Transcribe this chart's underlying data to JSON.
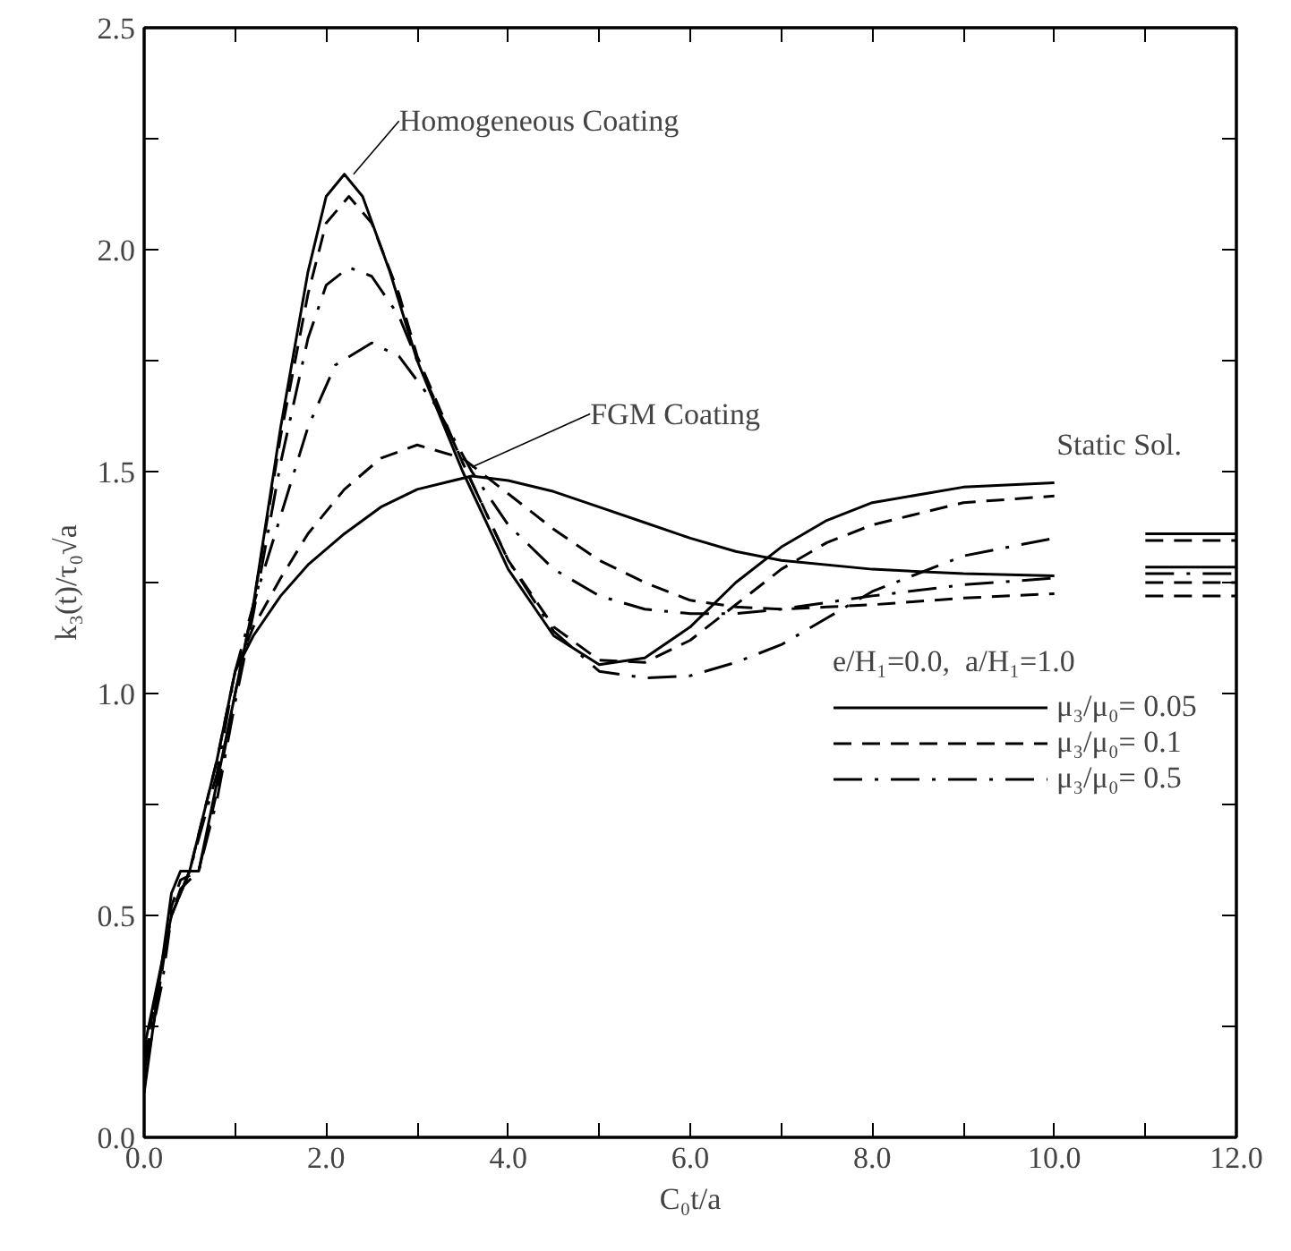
{
  "chart_data": {
    "type": "line",
    "xlabel": "C₀t/a",
    "ylabel": "k₃(t)/τ₀√a",
    "legend_title": "e/H₁=0.0,  a/H₁=1.0",
    "legend": "bottom right",
    "grid": false,
    "xlim": [
      0,
      12
    ],
    "ylim": [
      0,
      2.5
    ],
    "xticks": [
      {
        "value": 0,
        "label": "0.0"
      },
      {
        "value": 1,
        "label": null
      },
      {
        "value": 2,
        "label": "2.0"
      },
      {
        "value": 3,
        "label": null
      },
      {
        "value": 4,
        "label": "4.0"
      },
      {
        "value": 5,
        "label": null
      },
      {
        "value": 6,
        "label": "6.0"
      },
      {
        "value": 7,
        "label": null
      },
      {
        "value": 8,
        "label": "8.0"
      },
      {
        "value": 9,
        "label": null
      },
      {
        "value": 10,
        "label": "10.0"
      },
      {
        "value": 11,
        "label": null
      },
      {
        "value": 12,
        "label": "12.0"
      }
    ],
    "yticks": [
      {
        "value": 0,
        "label": "0.0"
      },
      {
        "value": 0.25,
        "label": null
      },
      0.5,
      {
        "value": 0.75,
        "label": null
      },
      {
        "value": 1,
        "label": "1.0"
      },
      {
        "value": 1.25,
        "label": null
      },
      1.5,
      {
        "value": 1.75,
        "label": null
      },
      {
        "value": 2,
        "label": "2.0"
      },
      {
        "value": 2.25,
        "label": null
      },
      2.5
    ],
    "series": [
      {
        "name": "μ₃/μ₀= 0.05",
        "color": "#000000",
        "line_style": "solid",
        "x": [
          0,
          0.2,
          0.3,
          0.4,
          0.6,
          0.8,
          1.0,
          1.2,
          1.5,
          1.8,
          2.0,
          2.2,
          2.4,
          2.7,
          3.0,
          3.5,
          4.0,
          4.5,
          5.0,
          5.5,
          6.0,
          6.5,
          7.0,
          7.5,
          8.0,
          9.0,
          10.0
        ],
        "values": [
          0.1,
          0.4,
          0.55,
          0.6,
          0.6,
          0.8,
          1.0,
          1.2,
          1.6,
          1.95,
          2.12,
          2.17,
          2.12,
          1.95,
          1.75,
          1.5,
          1.28,
          1.13,
          1.065,
          1.08,
          1.15,
          1.25,
          1.33,
          1.39,
          1.43,
          1.465,
          1.475
        ]
      },
      {
        "name": "μ₃/μ₀= 0.1",
        "color": "#000000",
        "line_style": "dashed",
        "x": [
          0,
          0.2,
          0.3,
          0.4,
          0.6,
          0.8,
          1.0,
          1.2,
          1.5,
          1.8,
          2.0,
          2.25,
          2.5,
          2.8,
          3.0,
          3.5,
          4.0,
          4.5,
          5.0,
          5.5,
          6.0,
          6.5,
          7.0,
          7.5,
          8.0,
          9.0,
          10.0
        ],
        "values": [
          0.12,
          0.38,
          0.52,
          0.58,
          0.6,
          0.78,
          1.0,
          1.2,
          1.58,
          1.9,
          2.06,
          2.12,
          2.06,
          1.9,
          1.76,
          1.52,
          1.3,
          1.15,
          1.075,
          1.07,
          1.12,
          1.2,
          1.28,
          1.34,
          1.38,
          1.43,
          1.445
        ]
      },
      {
        "name": "μ₃/μ₀= 0.5",
        "color": "#000000",
        "line_style": "dashdot",
        "x": [
          0,
          0.2,
          0.3,
          0.4,
          0.6,
          0.8,
          1.0,
          1.2,
          1.5,
          1.8,
          2.0,
          2.25,
          2.5,
          2.8,
          3.0,
          3.5,
          4.0,
          4.5,
          5.0,
          5.5,
          6.0,
          6.5,
          7.0,
          7.5,
          8.0,
          9.0,
          10.0
        ],
        "values": [
          0.15,
          0.35,
          0.5,
          0.56,
          0.6,
          0.76,
          0.98,
          1.18,
          1.52,
          1.8,
          1.92,
          1.96,
          1.94,
          1.85,
          1.75,
          1.52,
          1.3,
          1.14,
          1.05,
          1.035,
          1.04,
          1.07,
          1.11,
          1.17,
          1.23,
          1.31,
          1.35
        ]
      },
      {
        "color": "#000000",
        "line_style": "solid",
        "x": [
          0,
          0.3,
          0.5,
          0.8,
          1.0,
          1.2,
          1.5,
          1.8,
          2.2,
          2.6,
          3.0,
          3.6,
          4.0,
          4.5,
          5.0,
          5.5,
          6.0,
          6.5,
          7.0,
          8.0,
          9.0,
          10.0
        ],
        "values": [
          0.2,
          0.5,
          0.6,
          0.85,
          1.05,
          1.13,
          1.22,
          1.29,
          1.36,
          1.42,
          1.46,
          1.49,
          1.48,
          1.455,
          1.42,
          1.385,
          1.35,
          1.32,
          1.3,
          1.28,
          1.27,
          1.265
        ]
      },
      {
        "color": "#000000",
        "line_style": "dashed",
        "x": [
          0,
          0.3,
          0.5,
          0.8,
          1.0,
          1.2,
          1.5,
          1.8,
          2.2,
          2.6,
          3.0,
          3.5,
          4.0,
          4.5,
          5.0,
          5.5,
          6.0,
          6.5,
          7.0,
          7.5,
          8.0,
          9.0,
          10.0
        ],
        "values": [
          0.18,
          0.5,
          0.6,
          0.85,
          1.05,
          1.15,
          1.26,
          1.36,
          1.46,
          1.53,
          1.56,
          1.53,
          1.45,
          1.37,
          1.3,
          1.25,
          1.21,
          1.195,
          1.19,
          1.195,
          1.2,
          1.215,
          1.225
        ]
      },
      {
        "color": "#000000",
        "line_style": "dashdot",
        "x": [
          0,
          0.3,
          0.5,
          0.8,
          1.0,
          1.2,
          1.5,
          1.8,
          2.1,
          2.5,
          2.8,
          3.2,
          3.6,
          4.0,
          4.5,
          5.0,
          5.5,
          6.0,
          6.5,
          7.0,
          8.0,
          9.0,
          10.0
        ],
        "values": [
          0.16,
          0.5,
          0.6,
          0.82,
          1.05,
          1.2,
          1.4,
          1.6,
          1.74,
          1.79,
          1.76,
          1.65,
          1.5,
          1.38,
          1.28,
          1.22,
          1.19,
          1.18,
          1.18,
          1.19,
          1.22,
          1.245,
          1.26
        ]
      },
      {
        "color": "#000000",
        "line_style": "solid",
        "x": [
          11,
          12
        ],
        "values": [
          1.36,
          1.36
        ]
      },
      {
        "color": "#000000",
        "line_style": "dashed",
        "x": [
          11,
          12
        ],
        "values": [
          1.345,
          1.345
        ]
      },
      {
        "color": "#000000",
        "line_style": "dashdot",
        "x": [
          11,
          12
        ],
        "values": [
          1.27,
          1.27
        ]
      },
      {
        "color": "#000000",
        "line_style": "solid",
        "x": [
          11,
          12
        ],
        "values": [
          1.285,
          1.285
        ]
      },
      {
        "color": "#000000",
        "line_style": "dashed",
        "x": [
          11,
          12
        ],
        "values": [
          1.25,
          1.25
        ]
      },
      {
        "color": "#000000",
        "line_style": "dashed",
        "x": [
          11,
          12
        ],
        "values": [
          1.22,
          1.22
        ]
      }
    ],
    "annotations": [
      {
        "text": "Homogeneous Coating",
        "x": 2.3,
        "y": 2.17
      },
      {
        "text": "FGM Coating",
        "x": 3.6,
        "y": 1.51
      },
      {
        "text": "Static Sol.",
        "x": 11.5,
        "y": 1.36
      }
    ]
  }
}
